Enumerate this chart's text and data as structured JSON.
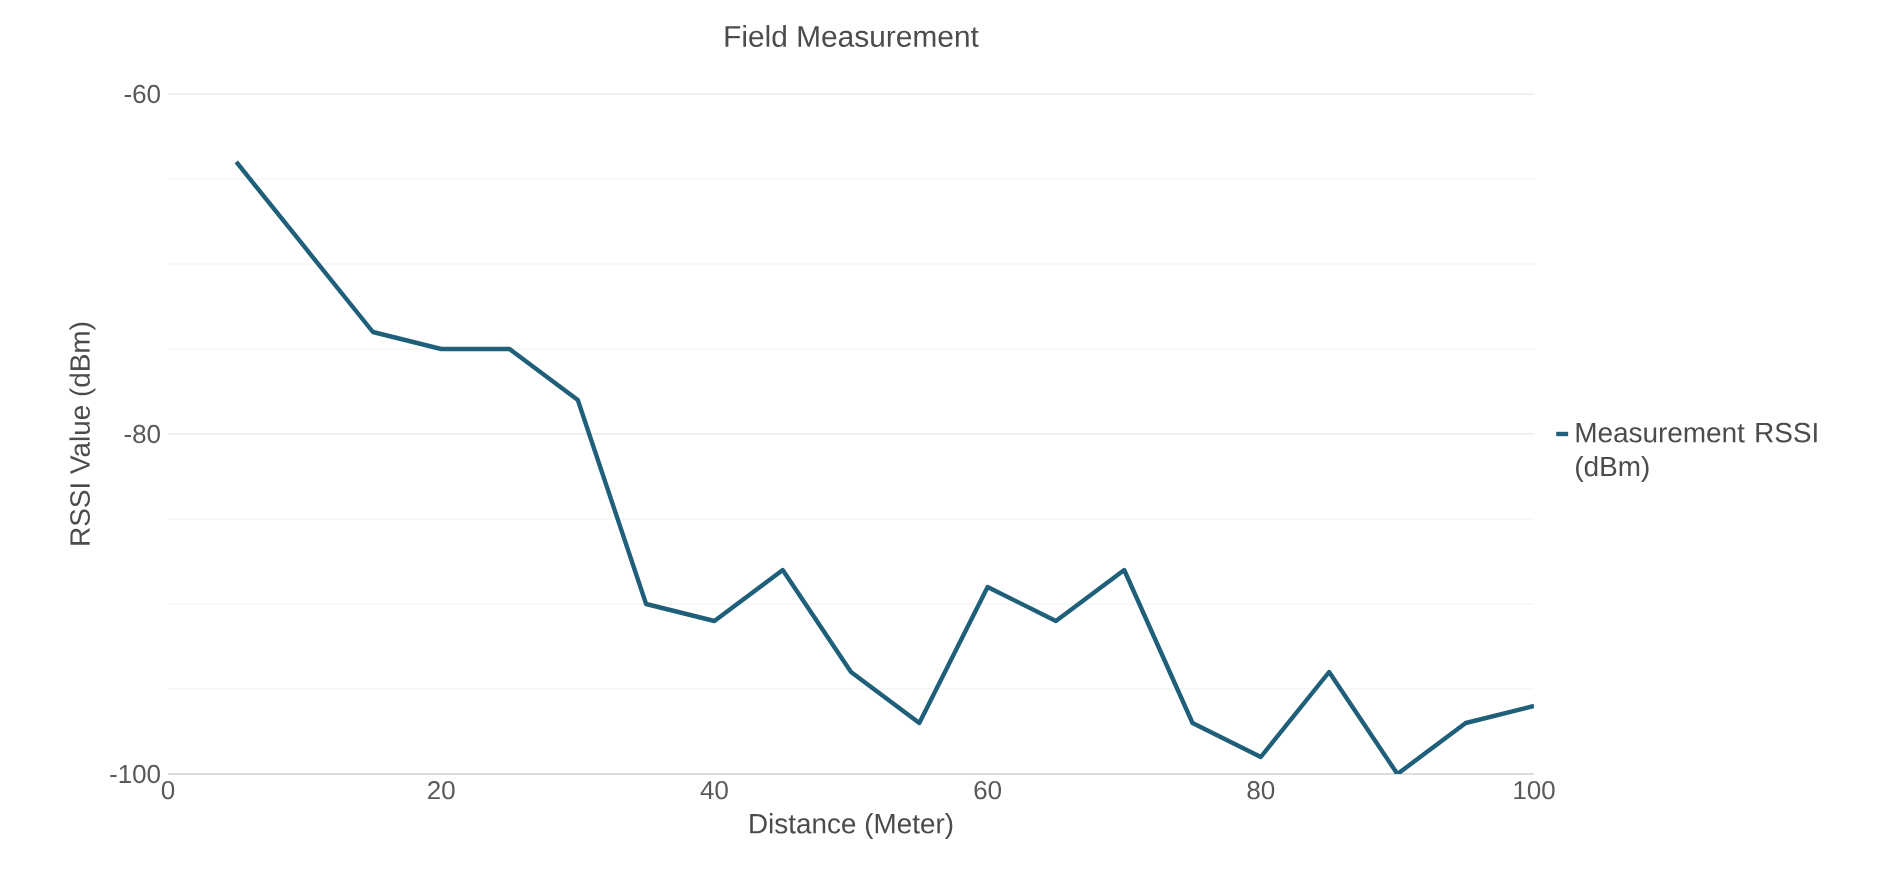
{
  "chart_data": {
    "type": "line",
    "title": "Field Measurement",
    "xlabel": "Distance (Meter)",
    "ylabel": "RSSI Value (dBm)",
    "x": [
      5,
      10,
      15,
      20,
      25,
      30,
      35,
      40,
      45,
      50,
      55,
      60,
      65,
      70,
      75,
      80,
      85,
      90,
      95,
      100
    ],
    "series": [
      {
        "name": "Measurement RSSI (dBm)",
        "color": "#1f5f7a",
        "values": [
          -64,
          -69,
          -74,
          -75,
          -75,
          -78,
          -90,
          -91,
          -88,
          -94,
          -97,
          -89,
          -91,
          -88,
          -97,
          -99,
          -94,
          -100,
          -97,
          -96
        ]
      }
    ],
    "xlim": [
      0,
      100
    ],
    "xticks": [
      0,
      20,
      40,
      60,
      80,
      100
    ],
    "ylim": [
      -100,
      -60
    ],
    "yticks": [
      -100,
      -80,
      -60
    ],
    "grid": "y",
    "legend": "right",
    "marker": "none",
    "line_style": "solid"
  }
}
